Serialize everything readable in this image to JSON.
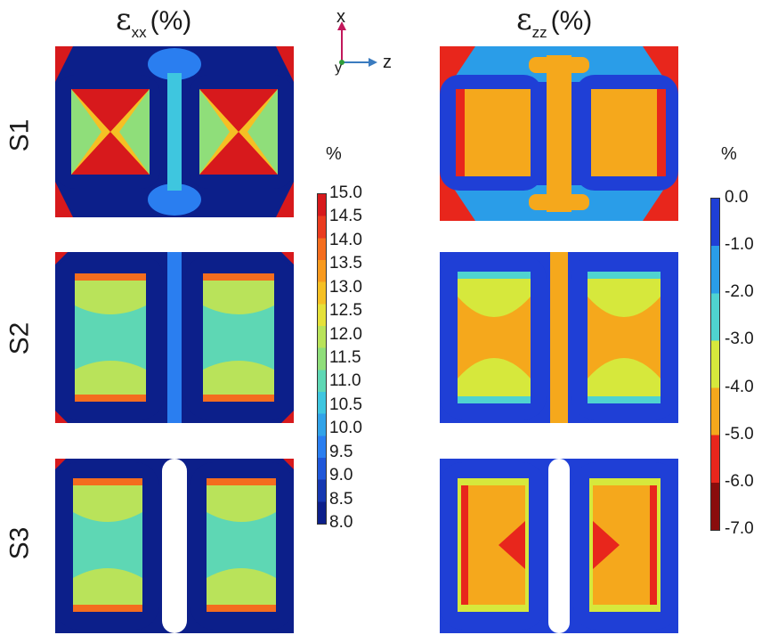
{
  "titles": {
    "exx": {
      "symbol": "ε",
      "sub": "xx",
      "unit": "(%)"
    },
    "ezz": {
      "symbol": "ε",
      "sub": "zz",
      "unit": "(%)"
    }
  },
  "rows": [
    "S1",
    "S2",
    "S3"
  ],
  "axes": {
    "x": "x",
    "z": "z",
    "y": "y"
  },
  "colorbar_exx": {
    "unit": "%",
    "ticks": [
      "15.0",
      "14.5",
      "14.0",
      "13.5",
      "13.0",
      "12.5",
      "12.0",
      "11.5",
      "11.0",
      "10.5",
      "10.0",
      "9.5",
      "9.0",
      "8.5",
      "8.0"
    ],
    "colors": [
      "#d7191c",
      "#ea3b1f",
      "#f46d1e",
      "#f89a1e",
      "#f5c024",
      "#e5e13a",
      "#b9e35a",
      "#8fde7a",
      "#5ed7b4",
      "#3ec6df",
      "#31a3e8",
      "#2a7ef0",
      "#1f57d9",
      "#1537b0",
      "#0c1f8a"
    ]
  },
  "colorbar_ezz": {
    "unit": "%",
    "ticks": [
      "0.0",
      "-1.0",
      "-2.0",
      "-3.0",
      "-4.0",
      "-5.0",
      "-6.0",
      "-7.0"
    ],
    "colors": [
      "#1f3fd6",
      "#2a9de8",
      "#4fd3d0",
      "#d6e83c",
      "#f5a81c",
      "#e8261c",
      "#8a0c0c"
    ]
  }
}
